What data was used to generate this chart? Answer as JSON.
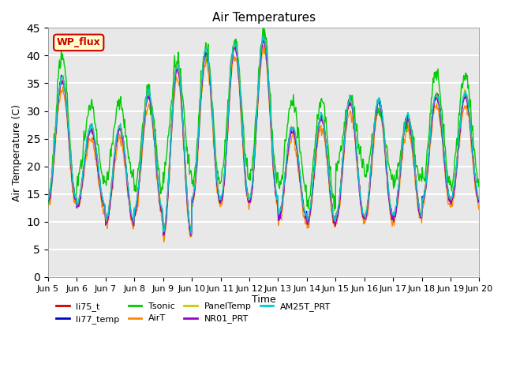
{
  "title": "Air Temperatures",
  "xlabel": "Time",
  "ylabel": "Air Temperature (C)",
  "xlim_start": 5,
  "xlim_end": 20,
  "ylim": [
    0,
    45
  ],
  "yticks": [
    0,
    5,
    10,
    15,
    20,
    25,
    30,
    35,
    40,
    45
  ],
  "xtick_labels": [
    "Jun 5",
    "Jun 6",
    "Jun 7",
    "Jun 8",
    "Jun 9",
    "Jun 10",
    "Jun 11",
    "Jun 12",
    "Jun 13",
    "Jun 14",
    "Jun 15",
    "Jun 16",
    "Jun 17",
    "Jun 18",
    "Jun 19",
    "Jun 20"
  ],
  "plot_bg_color": "#e8e8e8",
  "legend_entries": [
    {
      "label": "li75_t",
      "color": "#cc0000"
    },
    {
      "label": "li77_temp",
      "color": "#0000cc"
    },
    {
      "label": "Tsonic",
      "color": "#00cc00"
    },
    {
      "label": "AirT",
      "color": "#ff8800"
    },
    {
      "label": "PanelTemp",
      "color": "#cccc00"
    },
    {
      "label": "NR01_PRT",
      "color": "#9900cc"
    },
    {
      "label": "AM25T_PRT",
      "color": "#00cccc"
    }
  ],
  "wp_flux_text": "WP_flux",
  "wp_flux_facecolor": "#ffffcc",
  "wp_flux_edgecolor": "#cc0000",
  "wp_flux_text_color": "#cc0000",
  "series_colors": {
    "li75_t": "#cc0000",
    "li77_temp": "#0000cc",
    "tsonic": "#00cc00",
    "airT": "#ff8800",
    "panelTemp": "#cccc00",
    "nr01_prt": "#9900cc",
    "am25t_prt": "#00cccc"
  },
  "base_mins": [
    14,
    13,
    10,
    12,
    8,
    14,
    14,
    14,
    11,
    10,
    11,
    11,
    11,
    14,
    14
  ],
  "base_maxs": [
    36,
    27,
    27,
    33,
    38,
    41,
    42,
    43,
    27,
    29,
    32,
    32,
    29,
    33,
    33
  ],
  "tsonic_mins": [
    14,
    17,
    18,
    16,
    19,
    17,
    18,
    18,
    16,
    13,
    20,
    18,
    17,
    17,
    17
  ],
  "tsonic_maxs": [
    40,
    31,
    31,
    34,
    39,
    41,
    43,
    44,
    32,
    32,
    32,
    30,
    28,
    37,
    37
  ]
}
